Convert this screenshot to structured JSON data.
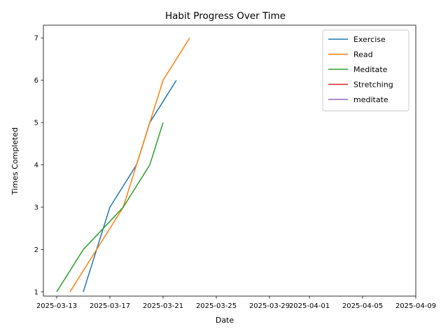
{
  "chart_data": {
    "type": "line",
    "title": "Habit Progress Over Time",
    "xlabel": "Date",
    "ylabel": "Times Completed",
    "x_range": [
      "2025-03-12",
      "2025-04-09"
    ],
    "ylim": [
      0.9,
      7.3
    ],
    "x_ticks": [
      "2025-03-13",
      "2025-03-17",
      "2025-03-21",
      "2025-03-25",
      "2025-03-29",
      "2025-04-01",
      "2025-04-05",
      "2025-04-09"
    ],
    "y_ticks": [
      1,
      2,
      3,
      4,
      5,
      6,
      7
    ],
    "grid": false,
    "legend_position": "top-right",
    "series": [
      {
        "name": "Exercise",
        "color": "#1f77b4",
        "points": [
          {
            "x": "2025-03-15",
            "y": 1
          },
          {
            "x": "2025-03-17",
            "y": 3
          },
          {
            "x": "2025-03-19",
            "y": 4
          },
          {
            "x": "2025-03-20",
            "y": 5
          },
          {
            "x": "2025-03-22",
            "y": 6
          }
        ]
      },
      {
        "name": "Read",
        "color": "#ff7f0e",
        "points": [
          {
            "x": "2025-03-14",
            "y": 1
          },
          {
            "x": "2025-03-17",
            "y": 2.5
          },
          {
            "x": "2025-03-18",
            "y": 3
          },
          {
            "x": "2025-03-20",
            "y": 5
          },
          {
            "x": "2025-03-21",
            "y": 6
          },
          {
            "x": "2025-03-23",
            "y": 7
          }
        ]
      },
      {
        "name": "Meditate",
        "color": "#2ca02c",
        "points": [
          {
            "x": "2025-03-13",
            "y": 1
          },
          {
            "x": "2025-03-15",
            "y": 2
          },
          {
            "x": "2025-03-18",
            "y": 3
          },
          {
            "x": "2025-03-20",
            "y": 4
          },
          {
            "x": "2025-03-21",
            "y": 5
          }
        ]
      },
      {
        "name": "Stretching",
        "color": "#d62728",
        "points": []
      },
      {
        "name": "meditate",
        "color": "#9467bd",
        "points": []
      }
    ]
  }
}
